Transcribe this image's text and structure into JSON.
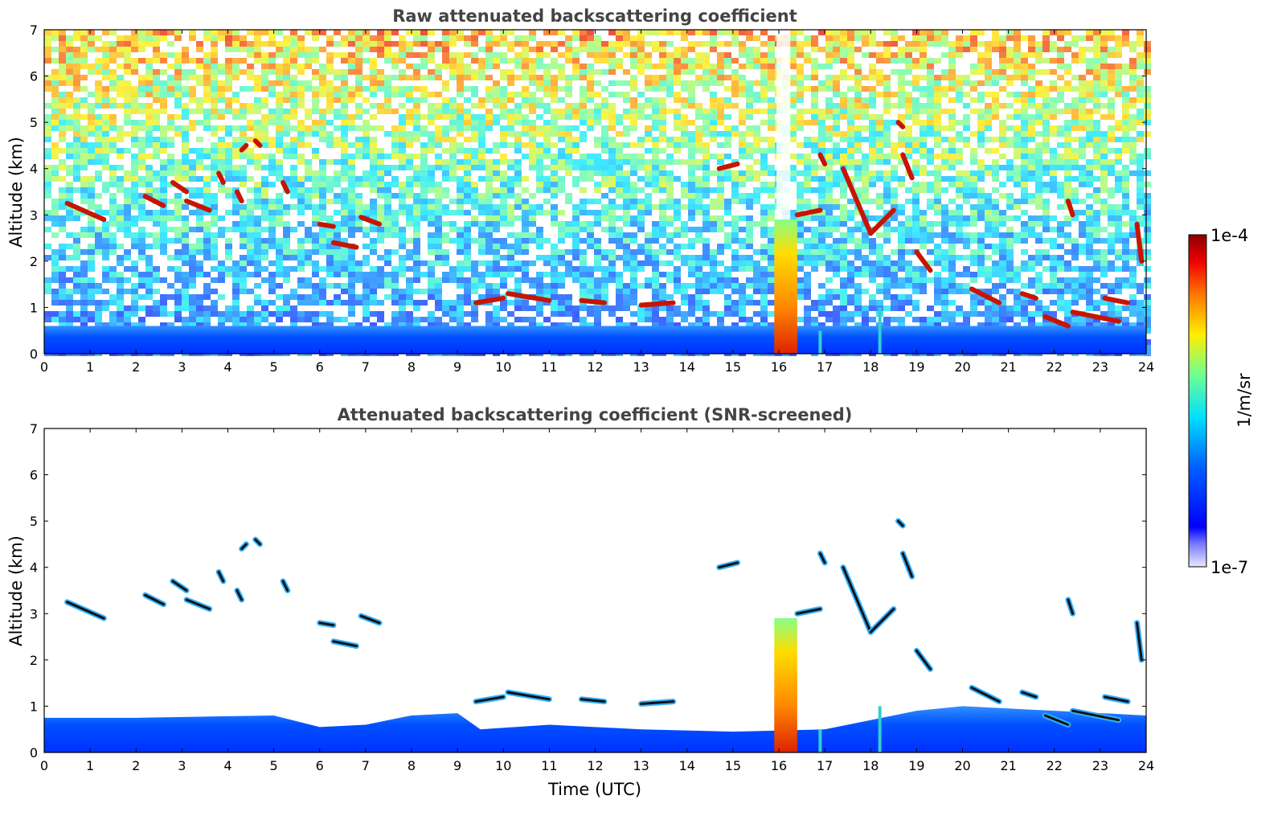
{
  "chart_data": [
    {
      "type": "heatmap",
      "title": "Raw attenuated backscattering coefficient",
      "xlabel": "",
      "ylabel": "Altitude (km)",
      "xlim": [
        0,
        24
      ],
      "ylim": [
        0,
        7
      ],
      "x_ticks": [
        "0",
        "1",
        "2",
        "3",
        "4",
        "5",
        "6",
        "7",
        "8",
        "9",
        "10",
        "11",
        "12",
        "13",
        "14",
        "15",
        "16",
        "17",
        "18",
        "19",
        "20",
        "21",
        "22",
        "23",
        "24"
      ],
      "y_ticks": [
        "0",
        "1",
        "2",
        "3",
        "4",
        "5",
        "6",
        "7"
      ],
      "color_scale": "log",
      "colormap": "jet",
      "boundary_layer_top_km": 0.6,
      "noise": "speckle increasing with altitude (blue near ground to yellow/red aloft)",
      "cloud_features": [
        {
          "x": [
            0.5,
            1.3
          ],
          "y": [
            3.25,
            2.9
          ]
        },
        {
          "x": [
            2.2,
            2.6
          ],
          "y": [
            3.4,
            3.2
          ]
        },
        {
          "x": [
            2.8,
            3.1
          ],
          "y": [
            3.7,
            3.5
          ]
        },
        {
          "x": [
            3.1,
            3.6
          ],
          "y": [
            3.3,
            3.1
          ]
        },
        {
          "x": [
            3.8,
            3.9
          ],
          "y": [
            3.9,
            3.7
          ]
        },
        {
          "x": [
            4.2,
            4.3
          ],
          "y": [
            3.5,
            3.3
          ]
        },
        {
          "x": [
            4.3,
            4.4
          ],
          "y": [
            4.4,
            4.5
          ]
        },
        {
          "x": [
            4.6,
            4.7
          ],
          "y": [
            4.6,
            4.5
          ]
        },
        {
          "x": [
            5.2,
            5.3
          ],
          "y": [
            3.7,
            3.5
          ]
        },
        {
          "x": [
            6.0,
            6.3
          ],
          "y": [
            2.8,
            2.75
          ]
        },
        {
          "x": [
            6.3,
            6.8
          ],
          "y": [
            2.4,
            2.3
          ]
        },
        {
          "x": [
            6.9,
            7.3
          ],
          "y": [
            2.95,
            2.8
          ]
        },
        {
          "x": [
            9.4,
            10.0
          ],
          "y": [
            1.1,
            1.2
          ]
        },
        {
          "x": [
            10.1,
            11.0
          ],
          "y": [
            1.3,
            1.15
          ]
        },
        {
          "x": [
            11.7,
            12.2
          ],
          "y": [
            1.15,
            1.1
          ]
        },
        {
          "x": [
            13.0,
            13.7
          ],
          "y": [
            1.05,
            1.1
          ]
        },
        {
          "x": [
            14.7,
            15.1
          ],
          "y": [
            4.0,
            4.1
          ]
        },
        {
          "x": [
            16.4,
            16.9
          ],
          "y": [
            3.0,
            3.1
          ]
        },
        {
          "x": [
            16.9,
            17.0
          ],
          "y": [
            4.3,
            4.1
          ]
        },
        {
          "x": [
            17.4,
            18.0
          ],
          "y": [
            4.0,
            2.6
          ]
        },
        {
          "x": [
            18.0,
            18.5
          ],
          "y": [
            2.6,
            3.1
          ]
        },
        {
          "x": [
            18.6,
            18.7
          ],
          "y": [
            5.0,
            4.9
          ]
        },
        {
          "x": [
            18.7,
            18.9
          ],
          "y": [
            4.3,
            3.8
          ]
        },
        {
          "x": [
            19.0,
            19.3
          ],
          "y": [
            2.2,
            1.8
          ]
        },
        {
          "x": [
            20.2,
            20.8
          ],
          "y": [
            1.4,
            1.1
          ]
        },
        {
          "x": [
            21.3,
            21.6
          ],
          "y": [
            1.3,
            1.2
          ]
        },
        {
          "x": [
            21.8,
            22.3
          ],
          "y": [
            0.8,
            0.6
          ]
        },
        {
          "x": [
            22.3,
            22.4
          ],
          "y": [
            3.3,
            3.0
          ]
        },
        {
          "x": [
            22.4,
            23.4
          ],
          "y": [
            0.9,
            0.7
          ]
        },
        {
          "x": [
            23.1,
            23.6
          ],
          "y": [
            1.2,
            1.1
          ]
        },
        {
          "x": [
            23.8,
            23.9
          ],
          "y": [
            2.8,
            2.0
          ]
        }
      ],
      "dense_precipitation_column": {
        "x": [
          15.9,
          16.4
        ],
        "y": [
          0,
          2.9
        ]
      },
      "thin_plumes": [
        {
          "x": 16.9,
          "y_top": 0.5
        },
        {
          "x": 18.2,
          "y_top": 1.0
        }
      ]
    },
    {
      "type": "heatmap",
      "title": "Attenuated backscattering coefficient (SNR-screened)",
      "xlabel": "Time (UTC)",
      "ylabel": "Altitude (km)",
      "xlim": [
        0,
        24
      ],
      "ylim": [
        0,
        7
      ],
      "x_ticks": [
        "0",
        "1",
        "2",
        "3",
        "4",
        "5",
        "6",
        "7",
        "8",
        "9",
        "10",
        "11",
        "12",
        "13",
        "14",
        "15",
        "16",
        "17",
        "18",
        "19",
        "20",
        "21",
        "22",
        "23",
        "24"
      ],
      "y_ticks": [
        "0",
        "1",
        "2",
        "3",
        "4",
        "5",
        "6",
        "7"
      ],
      "color_scale": "log",
      "colormap": "jet",
      "boundary_layer_top_km": [
        [
          0,
          0.75
        ],
        [
          2,
          0.75
        ],
        [
          5,
          0.8
        ],
        [
          6,
          0.55
        ],
        [
          7,
          0.6
        ],
        [
          8,
          0.8
        ],
        [
          9,
          0.85
        ],
        [
          9.5,
          0.5
        ],
        [
          11,
          0.6
        ],
        [
          13,
          0.5
        ],
        [
          15,
          0.45
        ],
        [
          17,
          0.5
        ],
        [
          19,
          0.9
        ],
        [
          20,
          1.0
        ],
        [
          22,
          0.9
        ],
        [
          24,
          0.8
        ]
      ],
      "screened_above_km": 2.0
    }
  ],
  "colorbar": {
    "label": "1/m/sr",
    "max_label": "1e-4",
    "min_label": "1e-7",
    "range": [
      1e-07,
      0.0001
    ]
  }
}
